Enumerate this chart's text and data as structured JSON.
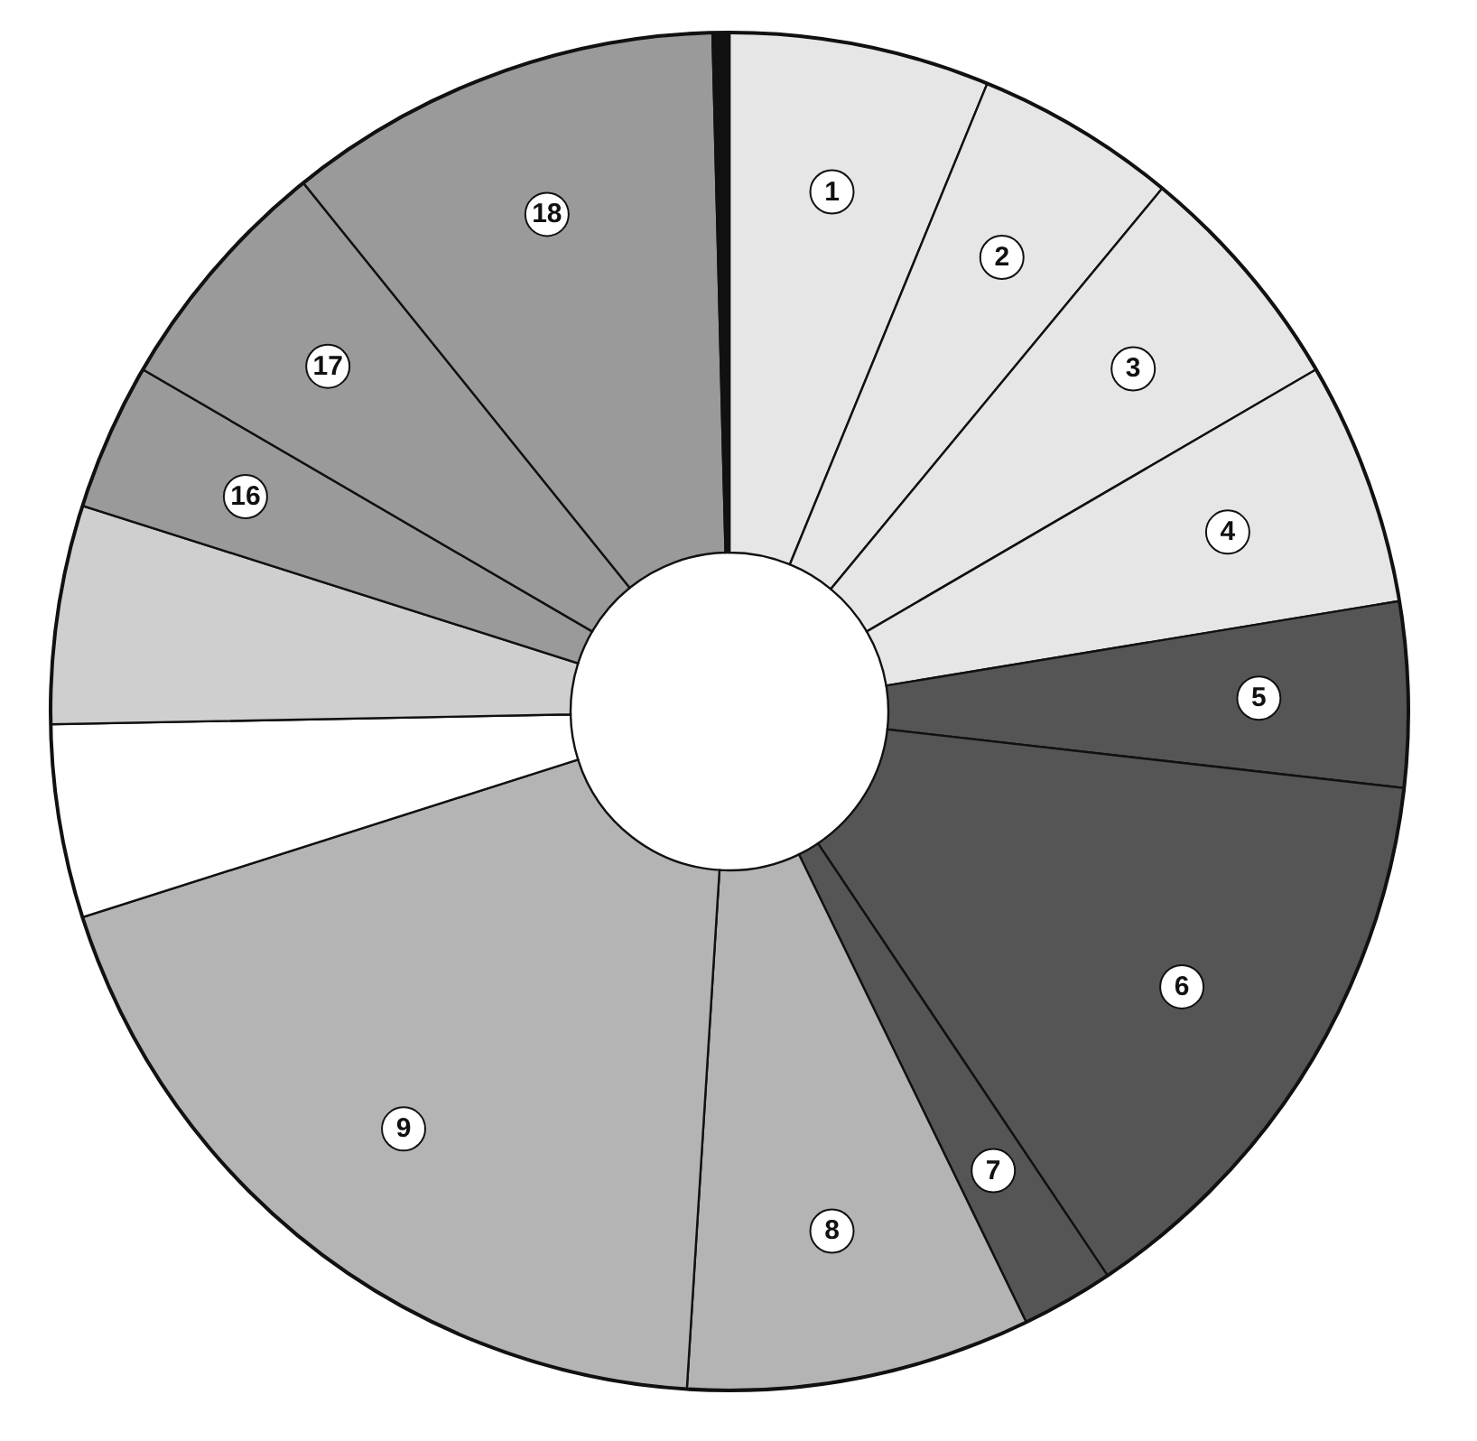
{
  "chart_data": {
    "type": "donut",
    "categories": [
      "1",
      "2",
      "3",
      "4",
      "5",
      "6",
      "7",
      "8",
      "9",
      null,
      null,
      "16",
      "17",
      "18",
      null
    ],
    "values": [
      6.2,
      4.8,
      5.6,
      5.8,
      4.4,
      13.8,
      2.2,
      8.2,
      19.1,
      4.6,
      5.2,
      3.5,
      5.8,
      10.4,
      0.4
    ],
    "colors": [
      "#e6e6e6",
      "#e6e6e6",
      "#e6e6e6",
      "#e6e6e6",
      "#555555",
      "#555555",
      "#555555",
      "#b4b4b4",
      "#b4b4b4",
      "#ffffff",
      "#cfcfcf",
      "#9a9a9a",
      "#9a9a9a",
      "#9a9a9a",
      "#111111"
    ]
  }
}
